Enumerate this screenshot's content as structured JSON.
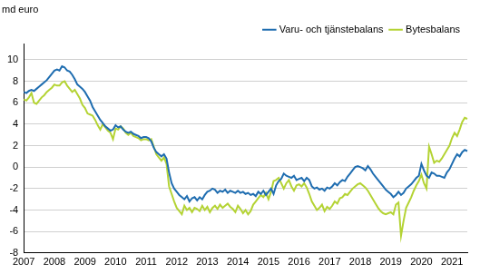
{
  "chart_data": {
    "type": "line",
    "ylabel": "md euro",
    "categories": [
      "2007",
      null,
      null,
      null,
      null,
      null,
      null,
      null,
      null,
      null,
      null,
      null,
      "2008",
      null,
      null,
      null,
      null,
      null,
      null,
      null,
      null,
      null,
      null,
      null,
      "2009",
      null,
      null,
      null,
      null,
      null,
      null,
      null,
      null,
      null,
      null,
      null,
      "2010",
      null,
      null,
      null,
      null,
      null,
      null,
      null,
      null,
      null,
      null,
      null,
      "2011",
      null,
      null,
      null,
      null,
      null,
      null,
      null,
      null,
      null,
      null,
      null,
      "2012",
      null,
      null,
      null,
      null,
      null,
      null,
      null,
      null,
      null,
      null,
      null,
      "2013",
      null,
      null,
      null,
      null,
      null,
      null,
      null,
      null,
      null,
      null,
      null,
      "2014",
      null,
      null,
      null,
      null,
      null,
      null,
      null,
      null,
      null,
      null,
      null,
      "2015",
      null,
      null,
      null,
      null,
      null,
      null,
      null,
      null,
      null,
      null,
      null,
      "2016",
      null,
      null,
      null,
      null,
      null,
      null,
      null,
      null,
      null,
      null,
      null,
      "2017",
      null,
      null,
      null,
      null,
      null,
      null,
      null,
      null,
      null,
      null,
      null,
      "2018",
      null,
      null,
      null,
      null,
      null,
      null,
      null,
      null,
      null,
      null,
      null,
      "2019",
      null,
      null,
      null,
      null,
      null,
      null,
      null,
      null,
      null,
      null,
      null,
      "2020",
      null,
      null,
      null,
      null,
      null,
      null,
      null,
      null,
      null,
      null,
      null,
      "2021",
      null,
      null,
      null,
      null,
      null,
      null
    ],
    "series": [
      {
        "name": "Varu- och tjänstebalans",
        "color": "#1f6db0",
        "values": [
          7.0,
          6.9,
          7.1,
          7.2,
          7.1,
          7.3,
          7.5,
          7.7,
          7.9,
          8.1,
          8.4,
          8.7,
          9.0,
          9.1,
          9.0,
          9.4,
          9.3,
          9.0,
          8.9,
          8.6,
          8.2,
          7.7,
          7.5,
          7.3,
          7.0,
          6.6,
          6.2,
          5.6,
          5.2,
          4.8,
          4.4,
          4.1,
          3.8,
          3.6,
          3.4,
          3.5,
          3.9,
          3.7,
          3.8,
          3.5,
          3.3,
          3.2,
          3.3,
          3.1,
          3.0,
          2.9,
          2.7,
          2.8,
          2.8,
          2.7,
          2.4,
          1.8,
          1.4,
          1.2,
          1.0,
          1.2,
          0.8,
          -0.5,
          -1.5,
          -2.0,
          -2.3,
          -2.6,
          -2.8,
          -3.0,
          -2.7,
          -3.2,
          -2.9,
          -2.8,
          -3.1,
          -2.8,
          -3.0,
          -2.6,
          -2.3,
          -2.2,
          -2.0,
          -2.1,
          -2.4,
          -2.2,
          -2.3,
          -2.1,
          -2.4,
          -2.2,
          -2.3,
          -2.4,
          -2.2,
          -2.4,
          -2.3,
          -2.5,
          -2.4,
          -2.6,
          -2.5,
          -2.7,
          -2.3,
          -2.5,
          -2.2,
          -2.6,
          -2.3,
          -2.0,
          -2.5,
          -1.7,
          -1.3,
          -1.1,
          -0.6,
          -0.8,
          -0.9,
          -1.0,
          -0.8,
          -1.2,
          -1.1,
          -1.0,
          -1.3,
          -1.0,
          -1.2,
          -1.8,
          -2.0,
          -1.9,
          -2.1,
          -2.0,
          -2.2,
          -1.9,
          -2.0,
          -1.8,
          -1.5,
          -1.7,
          -1.4,
          -1.2,
          -1.3,
          -0.9,
          -0.6,
          -0.3,
          0.0,
          0.1,
          0.0,
          -0.1,
          -0.3,
          0.1,
          -0.2,
          -0.6,
          -0.9,
          -1.2,
          -1.5,
          -1.8,
          -2.1,
          -2.3,
          -2.5,
          -2.8,
          -2.6,
          -2.3,
          -2.6,
          -2.4,
          -2.0,
          -1.8,
          -1.6,
          -1.3,
          -1.0,
          -0.8,
          0.3,
          -0.3,
          -0.8,
          -1.0,
          -0.5,
          -0.6,
          -0.8,
          -0.8,
          -0.9,
          -1.0,
          -0.5,
          -0.2,
          0.3,
          0.8,
          1.2,
          1.0,
          1.4,
          1.6,
          1.5
        ]
      },
      {
        "name": "Bytesbalans",
        "color": "#b4d334",
        "values": [
          6.3,
          6.2,
          6.5,
          6.9,
          6.0,
          5.9,
          6.2,
          6.5,
          6.7,
          7.0,
          7.2,
          7.4,
          7.7,
          7.6,
          7.6,
          7.9,
          8.0,
          7.6,
          7.3,
          7.0,
          7.2,
          6.8,
          6.4,
          5.8,
          5.5,
          5.0,
          4.9,
          4.8,
          4.4,
          3.9,
          3.5,
          4.0,
          3.7,
          3.4,
          3.2,
          2.6,
          3.6,
          3.5,
          3.8,
          3.6,
          3.2,
          3.0,
          3.2,
          2.9,
          2.8,
          2.7,
          2.5,
          2.6,
          2.6,
          2.5,
          2.6,
          1.9,
          1.2,
          0.9,
          0.6,
          0.9,
          0.3,
          -1.8,
          -2.5,
          -3.2,
          -3.8,
          -4.1,
          -4.4,
          -3.6,
          -4.0,
          -3.8,
          -4.2,
          -3.8,
          -3.9,
          -4.1,
          -3.6,
          -4.0,
          -3.7,
          -4.2,
          -3.8,
          -3.6,
          -3.9,
          -3.5,
          -3.8,
          -3.6,
          -3.4,
          -3.7,
          -3.9,
          -4.2,
          -3.6,
          -3.9,
          -4.3,
          -4.0,
          -4.4,
          -4.1,
          -3.5,
          -3.2,
          -2.9,
          -2.6,
          -2.8,
          -2.4,
          -3.0,
          -2.3,
          -1.3,
          -1.2,
          -1.0,
          -1.5,
          -2.0,
          -1.5,
          -1.2,
          -1.8,
          -2.2,
          -1.7,
          -1.6,
          -1.8,
          -1.5,
          -1.9,
          -2.5,
          -3.2,
          -3.6,
          -4.0,
          -3.8,
          -3.5,
          -4.1,
          -3.7,
          -3.9,
          -3.6,
          -3.2,
          -3.4,
          -2.9,
          -2.8,
          -2.5,
          -2.6,
          -2.3,
          -2.0,
          -1.8,
          -1.6,
          -1.5,
          -1.7,
          -1.9,
          -2.2,
          -2.6,
          -3.0,
          -3.4,
          -3.8,
          -4.1,
          -4.3,
          -4.4,
          -4.3,
          -4.2,
          -4.4,
          -3.5,
          -3.3,
          -6.4,
          -5.0,
          -3.8,
          -3.3,
          -2.8,
          -2.2,
          -1.7,
          -1.3,
          -0.7,
          -1.5,
          -2.0,
          1.9,
          1.2,
          0.4,
          0.6,
          0.5,
          0.8,
          1.2,
          1.6,
          2.0,
          2.7,
          3.2,
          2.9,
          3.5,
          4.2,
          4.6,
          4.5
        ]
      }
    ],
    "ylim": [
      -8,
      11.5
    ],
    "yticks": [
      -8,
      -6,
      -4,
      -2,
      0,
      2,
      4,
      6,
      8,
      10
    ],
    "grid": true,
    "legend": "upper right"
  }
}
